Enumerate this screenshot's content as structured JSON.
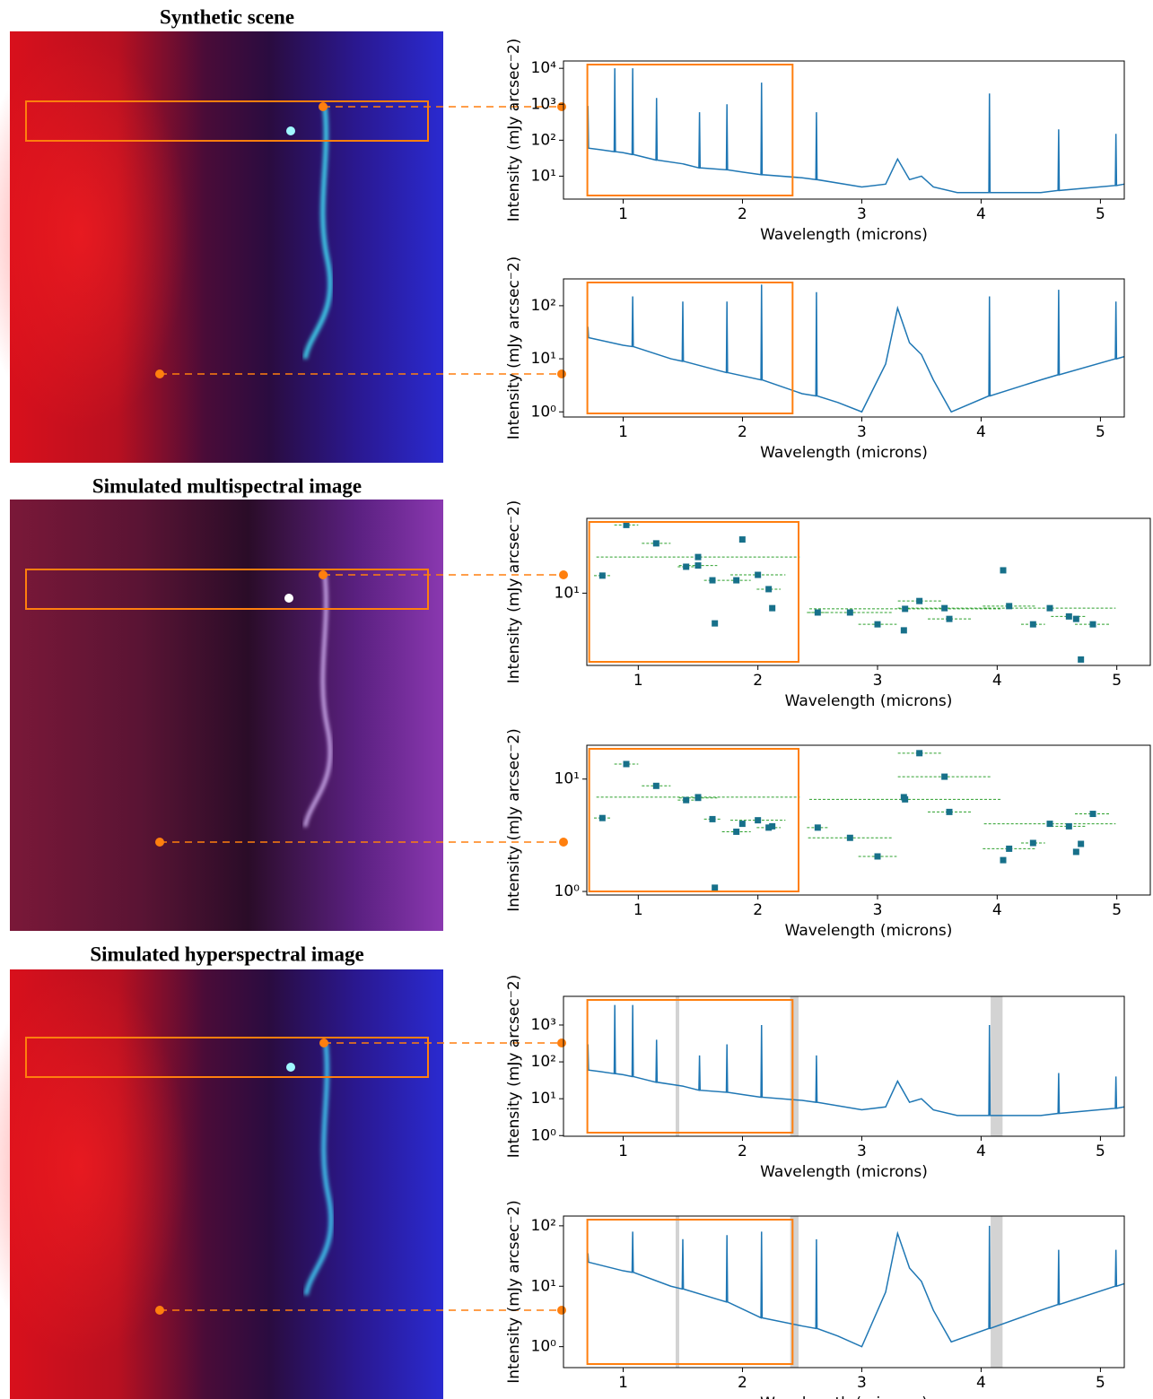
{
  "image_titles": [
    "Synthetic scene",
    "Simulated multispectral image",
    "Simulated hyperspectral image"
  ],
  "chart_data": [
    {
      "type": "line",
      "xlabel": "Wavelength (microns)",
      "ylabel": "Intensity (mJy arcsec⁻2)",
      "color": "#1f77b4",
      "yscale": "log",
      "xlim": [
        0.5,
        5.2
      ],
      "ylim": [
        2.3,
        16000
      ],
      "xticks": [
        1,
        2,
        3,
        4,
        5
      ],
      "yticks": [
        {
          "value": 10,
          "label": "10¹"
        },
        {
          "value": 100,
          "label": "10²"
        },
        {
          "value": 1000,
          "label": "10³"
        },
        {
          "value": 10000,
          "label": "10⁴"
        }
      ],
      "highlight_x": [
        0.7,
        2.42
      ],
      "x": [
        0.7,
        0.705,
        0.71,
        0.8,
        0.925,
        0.93,
        0.935,
        1.0,
        1.075,
        1.08,
        1.085,
        1.275,
        1.28,
        1.285,
        1.5,
        1.635,
        1.64,
        1.645,
        1.865,
        1.87,
        1.875,
        2.0,
        2.155,
        2.16,
        2.165,
        2.5,
        2.615,
        2.62,
        2.625,
        3.0,
        3.2,
        3.3,
        3.4,
        3.5,
        3.6,
        3.8,
        4.065,
        4.07,
        4.075,
        4.5,
        4.645,
        4.65,
        4.655,
        5.125,
        5.13,
        5.135,
        5.2
      ],
      "values": [
        70,
        900,
        60,
        55,
        48,
        10000,
        48,
        45,
        40,
        10000,
        40,
        28,
        1500,
        28,
        22,
        17,
        600,
        17,
        15,
        1000,
        15,
        13,
        11,
        4000,
        11,
        9,
        8,
        600,
        8,
        5,
        6,
        30,
        8,
        10,
        5,
        3.5,
        3.5,
        2000,
        3.5,
        3.5,
        4,
        200,
        4,
        5.5,
        150,
        5.5,
        6
      ]
    },
    {
      "type": "line",
      "xlabel": "Wavelength (microns)",
      "ylabel": "Intensity (mJy arcsec⁻2)",
      "color": "#1f77b4",
      "yscale": "log",
      "xlim": [
        0.5,
        5.2
      ],
      "ylim": [
        0.8,
        320
      ],
      "xticks": [
        1,
        2,
        3,
        4,
        5
      ],
      "yticks": [
        {
          "value": 1,
          "label": "10⁰"
        },
        {
          "value": 10,
          "label": "10¹"
        },
        {
          "value": 100,
          "label": "10²"
        }
      ],
      "highlight_x": [
        0.7,
        2.42
      ],
      "x": [
        0.7,
        0.705,
        0.71,
        1.0,
        1.075,
        1.08,
        1.085,
        1.4,
        1.495,
        1.5,
        1.505,
        1.8,
        1.865,
        1.87,
        1.875,
        2.155,
        2.16,
        2.165,
        2.5,
        2.615,
        2.62,
        2.625,
        2.8,
        3.0,
        3.2,
        3.3,
        3.4,
        3.5,
        3.6,
        3.75,
        4.065,
        4.07,
        4.075,
        4.5,
        4.645,
        4.65,
        4.655,
        5.125,
        5.13,
        5.135,
        5.2
      ],
      "values": [
        25,
        40,
        25,
        18,
        17,
        150,
        17,
        10,
        9,
        120,
        9,
        6,
        5.5,
        120,
        5.5,
        4,
        250,
        4,
        2.2,
        2,
        180,
        2,
        1.5,
        1,
        8,
        90,
        20,
        12,
        4,
        1,
        2,
        150,
        2,
        4,
        5,
        200,
        5,
        10,
        120,
        10,
        11
      ]
    },
    {
      "type": "scatter",
      "xlabel": "Wavelength (microns)",
      "ylabel": "Intensity (mJy arcsec⁻2)",
      "color": "#17708a",
      "err_color": "#2ca02c",
      "yscale": "log",
      "xlim": [
        0.57,
        5.28
      ],
      "ylim": [
        2.5,
        42
      ],
      "xticks": [
        1,
        2,
        3,
        4,
        5
      ],
      "yticks": [
        {
          "value": 10,
          "label": "10¹"
        }
      ],
      "highlight_x": [
        0.59,
        2.34
      ],
      "x": [
        0.7,
        0.9,
        1.15,
        1.4,
        1.5,
        1.5,
        1.64,
        1.62,
        1.82,
        1.87,
        2.0,
        2.09,
        2.12,
        2.5,
        2.77,
        3.0,
        3.23,
        3.22,
        3.35,
        3.56,
        3.6,
        4.05,
        4.1,
        4.3,
        4.44,
        4.6,
        4.66,
        4.7,
        4.8
      ],
      "xerr": [
        0.07,
        0.1,
        0.12,
        0.07,
        0.16,
        0.85,
        0.01,
        0.07,
        0.12,
        0.01,
        0.23,
        0.1,
        0.01,
        0.09,
        0.35,
        0.16,
        0.8,
        0.02,
        0.18,
        0.39,
        0.18,
        0.02,
        0.22,
        0.1,
        0.55,
        0.15,
        0.02,
        0.02,
        0.15
      ],
      "values": [
        14,
        37,
        26,
        16.6,
        17,
        20,
        5.6,
        12.8,
        12.8,
        28,
        14.2,
        10.8,
        7.5,
        6.9,
        6.9,
        5.5,
        7.4,
        4.9,
        8.6,
        7.5,
        6.1,
        15.5,
        7.8,
        5.5,
        7.5,
        6.4,
        6.1,
        2.8,
        5.5
      ]
    },
    {
      "type": "scatter",
      "xlabel": "Wavelength (microns)",
      "ylabel": "Intensity (mJy arcsec⁻2)",
      "color": "#17708a",
      "err_color": "#2ca02c",
      "yscale": "log",
      "xlim": [
        0.57,
        5.28
      ],
      "ylim": [
        0.93,
        20
      ],
      "xticks": [
        1,
        2,
        3,
        4,
        5
      ],
      "yticks": [
        {
          "value": 1,
          "label": "10⁰"
        },
        {
          "value": 10,
          "label": "10¹"
        }
      ],
      "highlight_x": [
        0.59,
        2.34
      ],
      "x": [
        0.7,
        0.9,
        1.15,
        1.4,
        1.5,
        1.5,
        1.64,
        1.62,
        1.82,
        1.87,
        2.0,
        2.09,
        2.12,
        2.5,
        2.77,
        3.0,
        3.23,
        3.22,
        3.35,
        3.56,
        3.6,
        4.05,
        4.1,
        4.3,
        4.44,
        4.6,
        4.66,
        4.7,
        4.8
      ],
      "xerr": [
        0.07,
        0.1,
        0.12,
        0.07,
        0.16,
        0.85,
        0.01,
        0.07,
        0.12,
        0.01,
        0.23,
        0.1,
        0.01,
        0.09,
        0.35,
        0.16,
        0.8,
        0.02,
        0.18,
        0.39,
        0.18,
        0.02,
        0.22,
        0.1,
        0.55,
        0.15,
        0.02,
        0.02,
        0.15
      ],
      "values": [
        4.5,
        13.6,
        8.7,
        6.5,
        6.8,
        6.9,
        1.08,
        4.4,
        3.4,
        4.0,
        4.3,
        3.7,
        3.8,
        3.7,
        3.0,
        2.05,
        6.6,
        6.9,
        17,
        10.5,
        5.1,
        1.9,
        2.4,
        2.7,
        4.0,
        3.8,
        2.25,
        2.65,
        4.9
      ]
    },
    {
      "type": "line",
      "xlabel": "Wavelength (microns)",
      "ylabel": "Intensity (mJy arcsec⁻2)",
      "color": "#1f77b4",
      "yscale": "log",
      "xlim": [
        0.5,
        5.2
      ],
      "ylim": [
        0.96,
        6000
      ],
      "xticks": [
        1,
        2,
        3,
        4,
        5
      ],
      "yticks": [
        {
          "value": 1,
          "label": "10⁰"
        },
        {
          "value": 10,
          "label": "10¹"
        },
        {
          "value": 100,
          "label": "10²"
        },
        {
          "value": 1000,
          "label": "10³"
        }
      ],
      "highlight_x": [
        0.7,
        2.42
      ],
      "shaded_x": [
        [
          1.44,
          1.47
        ],
        [
          2.4,
          2.47
        ],
        [
          4.08,
          4.18
        ]
      ],
      "x": [
        0.7,
        0.705,
        0.71,
        0.8,
        0.925,
        0.93,
        0.935,
        1.0,
        1.075,
        1.08,
        1.085,
        1.275,
        1.28,
        1.285,
        1.5,
        1.635,
        1.64,
        1.645,
        1.865,
        1.87,
        1.875,
        2.0,
        2.155,
        2.16,
        2.165,
        2.5,
        2.615,
        2.62,
        2.625,
        3.0,
        3.2,
        3.3,
        3.4,
        3.5,
        3.6,
        3.8,
        4.065,
        4.07,
        4.075,
        4.5,
        4.645,
        4.65,
        4.655,
        5.125,
        5.13,
        5.135,
        5.2
      ],
      "values": [
        70,
        300,
        60,
        55,
        48,
        3500,
        48,
        45,
        40,
        3500,
        40,
        28,
        400,
        28,
        22,
        17,
        150,
        17,
        15,
        300,
        15,
        13,
        11,
        1000,
        11,
        9,
        8,
        150,
        8,
        5,
        6,
        30,
        8,
        10,
        5,
        3.5,
        3.5,
        1000,
        3.5,
        3.5,
        4,
        50,
        4,
        5.5,
        40,
        5.5,
        6
      ]
    },
    {
      "type": "line",
      "xlabel": "Wavelength (microns)",
      "ylabel": "Intensity (mJy arcsec⁻2)",
      "color": "#1f77b4",
      "yscale": "log",
      "xlim": [
        0.5,
        5.2
      ],
      "ylim": [
        0.45,
        145
      ],
      "xticks": [
        1,
        2,
        3,
        4,
        5
      ],
      "yticks": [
        {
          "value": 1,
          "label": "10⁰"
        },
        {
          "value": 10,
          "label": "10¹"
        },
        {
          "value": 100,
          "label": "10²"
        }
      ],
      "highlight_x": [
        0.7,
        2.42
      ],
      "shaded_x": [
        [
          1.44,
          1.47
        ],
        [
          2.4,
          2.47
        ],
        [
          4.08,
          4.18
        ]
      ],
      "x": [
        0.7,
        0.705,
        0.71,
        1.0,
        1.075,
        1.08,
        1.085,
        1.4,
        1.495,
        1.5,
        1.505,
        1.8,
        1.865,
        1.87,
        1.875,
        2.155,
        2.16,
        2.165,
        2.5,
        2.615,
        2.62,
        2.625,
        2.8,
        3.0,
        3.2,
        3.3,
        3.4,
        3.5,
        3.6,
        3.75,
        4.065,
        4.07,
        4.075,
        4.5,
        4.645,
        4.65,
        4.655,
        5.125,
        5.13,
        5.135,
        5.2
      ],
      "values": [
        25,
        35,
        25,
        18,
        17,
        80,
        17,
        10,
        9,
        60,
        9,
        6,
        5.5,
        70,
        5.5,
        3,
        80,
        3,
        2.2,
        2,
        60,
        2,
        1.5,
        1,
        8,
        75,
        20,
        12,
        4,
        1.2,
        2,
        100,
        2,
        4,
        5,
        40,
        5,
        10,
        40,
        10,
        11
      ]
    }
  ]
}
